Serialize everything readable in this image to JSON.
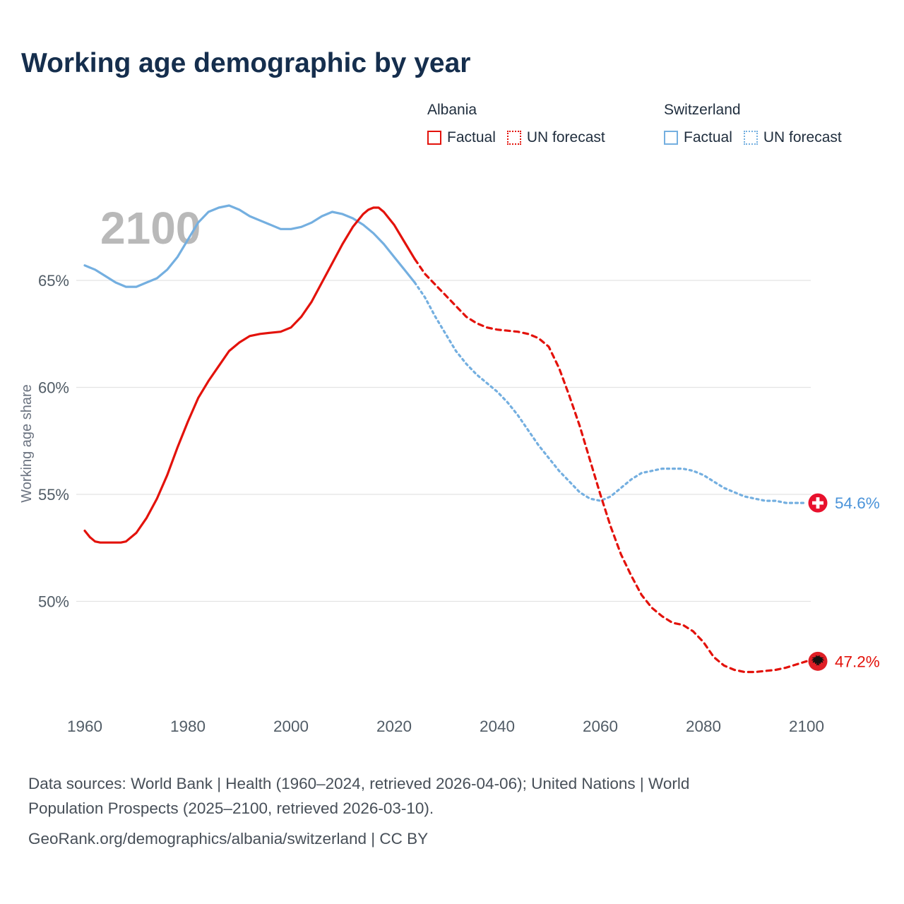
{
  "title": "Working age demographic by year",
  "legend": {
    "albania": {
      "label": "Albania",
      "factual": "Factual",
      "forecast": "UN forecast"
    },
    "switzerland": {
      "label": "Switzerland",
      "factual": "Factual",
      "forecast": "UN forecast"
    }
  },
  "footer": {
    "line1": "Data sources: World Bank | Health (1960–2024, retrieved 2026-04-06); United Nations | World",
    "line2": "Population Prospects (2025–2100, retrieved 2026-03-10).",
    "line3": "GeoRank.org/demographics/albania/switzerland | CC BY"
  },
  "colors": {
    "albania": "#e3120b",
    "switzerland": "#74afe0",
    "grid": "#e4e4e4",
    "tick": "#515c66",
    "axis_label": "#6b7380",
    "watermark": "#b9b9b9",
    "swiss_end_label": "#4a93d9",
    "albania_end_label": "#e3120b"
  },
  "chart_data": {
    "type": "line",
    "title": "Working age demographic by year",
    "xlabel": "",
    "ylabel": "Working age share",
    "watermark": "2100",
    "xlim": [
      1955,
      2118
    ],
    "ylim": [
      46,
      70
    ],
    "xticks": [
      1960,
      1980,
      2000,
      2020,
      2040,
      2060,
      2080,
      2100
    ],
    "yticks": [
      50,
      55,
      60,
      65
    ],
    "grid": "horizontal",
    "legend_position": "top-right",
    "series": [
      {
        "name": "switzerland-factual",
        "country": "Switzerland",
        "kind": "Factual",
        "color": "#74afe0",
        "style": "solid",
        "points": [
          [
            1960,
            65.7
          ],
          [
            1962,
            65.5
          ],
          [
            1964,
            65.2
          ],
          [
            1966,
            64.9
          ],
          [
            1968,
            64.7
          ],
          [
            1970,
            64.7
          ],
          [
            1972,
            64.9
          ],
          [
            1974,
            65.1
          ],
          [
            1976,
            65.5
          ],
          [
            1978,
            66.1
          ],
          [
            1980,
            66.9
          ],
          [
            1982,
            67.7
          ],
          [
            1984,
            68.2
          ],
          [
            1986,
            68.4
          ],
          [
            1988,
            68.5
          ],
          [
            1990,
            68.3
          ],
          [
            1992,
            68.0
          ],
          [
            1994,
            67.8
          ],
          [
            1996,
            67.6
          ],
          [
            1998,
            67.4
          ],
          [
            2000,
            67.4
          ],
          [
            2002,
            67.5
          ],
          [
            2004,
            67.7
          ],
          [
            2006,
            68.0
          ],
          [
            2008,
            68.2
          ],
          [
            2010,
            68.1
          ],
          [
            2012,
            67.9
          ],
          [
            2014,
            67.6
          ],
          [
            2016,
            67.2
          ],
          [
            2018,
            66.7
          ],
          [
            2020,
            66.1
          ],
          [
            2022,
            65.5
          ],
          [
            2024,
            64.9
          ]
        ]
      },
      {
        "name": "switzerland-forecast",
        "country": "Switzerland",
        "kind": "UN forecast",
        "color": "#74afe0",
        "style": "dashed",
        "dash": "3 5",
        "points": [
          [
            2024,
            64.9
          ],
          [
            2026,
            64.2
          ],
          [
            2028,
            63.3
          ],
          [
            2030,
            62.5
          ],
          [
            2032,
            61.7
          ],
          [
            2034,
            61.1
          ],
          [
            2036,
            60.6
          ],
          [
            2038,
            60.2
          ],
          [
            2040,
            59.8
          ],
          [
            2042,
            59.3
          ],
          [
            2044,
            58.7
          ],
          [
            2046,
            58.0
          ],
          [
            2048,
            57.3
          ],
          [
            2050,
            56.7
          ],
          [
            2052,
            56.1
          ],
          [
            2054,
            55.6
          ],
          [
            2056,
            55.1
          ],
          [
            2058,
            54.8
          ],
          [
            2060,
            54.7
          ],
          [
            2062,
            54.9
          ],
          [
            2064,
            55.3
          ],
          [
            2066,
            55.7
          ],
          [
            2068,
            56.0
          ],
          [
            2070,
            56.1
          ],
          [
            2072,
            56.2
          ],
          [
            2074,
            56.2
          ],
          [
            2076,
            56.2
          ],
          [
            2078,
            56.1
          ],
          [
            2080,
            55.9
          ],
          [
            2082,
            55.6
          ],
          [
            2084,
            55.3
          ],
          [
            2086,
            55.1
          ],
          [
            2088,
            54.9
          ],
          [
            2090,
            54.8
          ],
          [
            2092,
            54.7
          ],
          [
            2094,
            54.7
          ],
          [
            2096,
            54.6
          ],
          [
            2098,
            54.6
          ],
          [
            2100,
            54.6
          ]
        ]
      },
      {
        "name": "albania-factual",
        "country": "Albania",
        "kind": "Factual",
        "color": "#e3120b",
        "style": "solid",
        "points": [
          [
            1960,
            53.3
          ],
          [
            1961,
            53.0
          ],
          [
            1962,
            52.8
          ],
          [
            1963,
            52.75
          ],
          [
            1965,
            52.75
          ],
          [
            1967,
            52.75
          ],
          [
            1968,
            52.8
          ],
          [
            1970,
            53.2
          ],
          [
            1972,
            53.9
          ],
          [
            1974,
            54.8
          ],
          [
            1976,
            55.9
          ],
          [
            1978,
            57.2
          ],
          [
            1980,
            58.4
          ],
          [
            1982,
            59.5
          ],
          [
            1984,
            60.3
          ],
          [
            1986,
            61.0
          ],
          [
            1988,
            61.7
          ],
          [
            1990,
            62.1
          ],
          [
            1992,
            62.4
          ],
          [
            1994,
            62.5
          ],
          [
            1996,
            62.55
          ],
          [
            1998,
            62.6
          ],
          [
            2000,
            62.8
          ],
          [
            2002,
            63.3
          ],
          [
            2004,
            64.0
          ],
          [
            2006,
            64.9
          ],
          [
            2008,
            65.8
          ],
          [
            2010,
            66.7
          ],
          [
            2012,
            67.5
          ],
          [
            2014,
            68.1
          ],
          [
            2015,
            68.3
          ],
          [
            2016,
            68.4
          ],
          [
            2017,
            68.4
          ],
          [
            2018,
            68.2
          ],
          [
            2020,
            67.6
          ],
          [
            2022,
            66.8
          ],
          [
            2024,
            66.0
          ]
        ]
      },
      {
        "name": "albania-forecast",
        "country": "Albania",
        "kind": "UN forecast",
        "color": "#e3120b",
        "style": "dashed",
        "dash": "7 6",
        "points": [
          [
            2024,
            66.0
          ],
          [
            2026,
            65.3
          ],
          [
            2028,
            64.8
          ],
          [
            2030,
            64.3
          ],
          [
            2032,
            63.8
          ],
          [
            2034,
            63.3
          ],
          [
            2036,
            63.0
          ],
          [
            2038,
            62.8
          ],
          [
            2040,
            62.7
          ],
          [
            2042,
            62.65
          ],
          [
            2044,
            62.6
          ],
          [
            2046,
            62.5
          ],
          [
            2048,
            62.3
          ],
          [
            2050,
            61.9
          ],
          [
            2052,
            60.9
          ],
          [
            2054,
            59.6
          ],
          [
            2056,
            58.2
          ],
          [
            2058,
            56.6
          ],
          [
            2060,
            55.0
          ],
          [
            2062,
            53.5
          ],
          [
            2064,
            52.2
          ],
          [
            2066,
            51.2
          ],
          [
            2068,
            50.3
          ],
          [
            2070,
            49.7
          ],
          [
            2072,
            49.3
          ],
          [
            2074,
            49.0
          ],
          [
            2076,
            48.9
          ],
          [
            2078,
            48.6
          ],
          [
            2080,
            48.1
          ],
          [
            2082,
            47.4
          ],
          [
            2084,
            47.0
          ],
          [
            2086,
            46.8
          ],
          [
            2088,
            46.7
          ],
          [
            2090,
            46.7
          ],
          [
            2092,
            46.75
          ],
          [
            2094,
            46.8
          ],
          [
            2096,
            46.9
          ],
          [
            2098,
            47.05
          ],
          [
            2100,
            47.2
          ]
        ]
      }
    ],
    "end_labels": [
      {
        "series": "Switzerland",
        "value": 54.6,
        "label": "54.6%",
        "label_color": "#4a93d9",
        "flag": "switzerland",
        "flag_color": "#e8112d"
      },
      {
        "series": "Albania",
        "value": 47.2,
        "label": "47.2%",
        "label_color": "#e3120b",
        "flag": "albania",
        "flag_color": "#df1f26"
      }
    ]
  }
}
